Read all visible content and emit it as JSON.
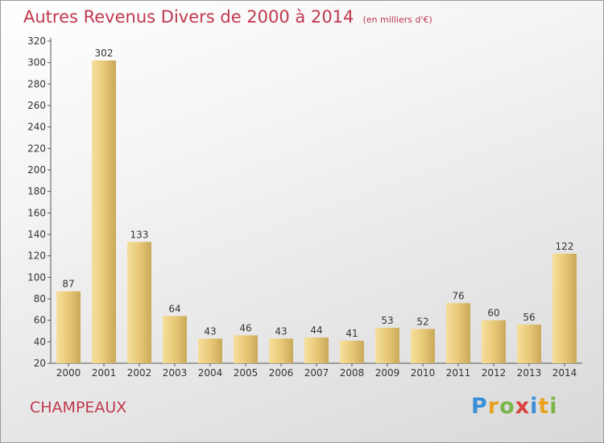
{
  "chart_data": {
    "type": "bar",
    "title": "Autres Revenus Divers de 2000 à 2014",
    "subtitle": "(en milliers d'€)",
    "categories": [
      "2000",
      "2001",
      "2002",
      "2003",
      "2004",
      "2005",
      "2006",
      "2007",
      "2008",
      "2009",
      "2010",
      "2011",
      "2012",
      "2013",
      "2014"
    ],
    "values": [
      87,
      302,
      133,
      64,
      43,
      46,
      43,
      44,
      41,
      53,
      52,
      76,
      60,
      56,
      122
    ],
    "ylim": [
      20,
      320
    ],
    "yticks": [
      20,
      40,
      60,
      80,
      100,
      120,
      140,
      160,
      180,
      200,
      220,
      240,
      260,
      280,
      300,
      320
    ],
    "grid": false,
    "bar_color": "#e3c26f",
    "xlabel": "",
    "ylabel": ""
  },
  "footer": {
    "commune": "CHAMPEAUX",
    "brand": "Proxiti"
  },
  "colors": {
    "title": "#c0394e",
    "commune": "#c0394e"
  }
}
